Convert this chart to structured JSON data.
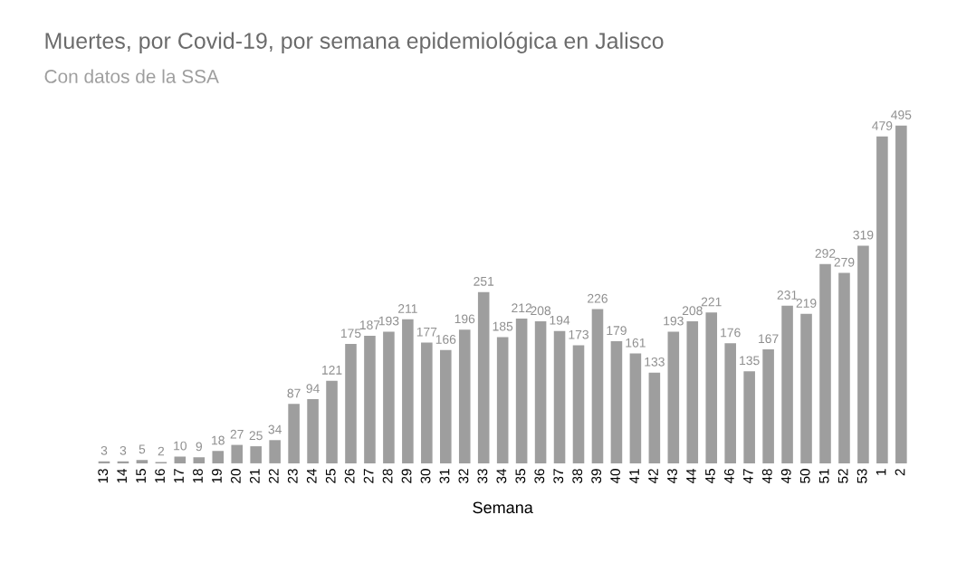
{
  "chart_data": {
    "type": "bar",
    "title": "Muertes, por Covid-19, por semana epidemiológica en Jalisco",
    "subtitle": "Con datos de la SSA",
    "xlabel": "Semana",
    "categories": [
      "13",
      "14",
      "15",
      "16",
      "17",
      "18",
      "19",
      "20",
      "21",
      "22",
      "23",
      "24",
      "25",
      "26",
      "27",
      "28",
      "29",
      "30",
      "31",
      "32",
      "33",
      "34",
      "35",
      "36",
      "37",
      "38",
      "39",
      "40",
      "41",
      "42",
      "43",
      "44",
      "45",
      "46",
      "47",
      "48",
      "49",
      "50",
      "51",
      "52",
      "53",
      "1",
      "2"
    ],
    "values": [
      3,
      3,
      5,
      2,
      10,
      9,
      18,
      27,
      25,
      34,
      87,
      94,
      121,
      175,
      187,
      193,
      211,
      177,
      166,
      196,
      251,
      185,
      212,
      208,
      194,
      173,
      226,
      179,
      161,
      133,
      193,
      208,
      221,
      176,
      135,
      167,
      231,
      219,
      292,
      279,
      319,
      479,
      495
    ],
    "color": "#9e9e9e",
    "data_labels": true,
    "grid": false,
    "legend": false
  }
}
